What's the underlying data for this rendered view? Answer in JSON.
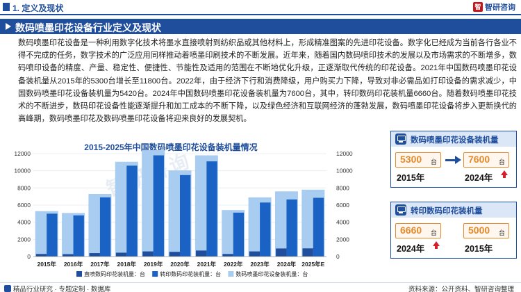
{
  "header": {
    "section_title": "1. 定义及现状",
    "brand": "智研咨询"
  },
  "title": "数码喷墨印花设备行业定义及现状",
  "paragraph": "数码喷墨印花设备是一种利用数字化技术将墨水直接喷射到纺织品或其他材料上，形成精准图案的先进印花设备。数字化已经成为当前各行各业不得不完成的任务，数字技术的广泛应用同样推动着喷墨印刷技术的不断发展。近年来，随着国内数码喷印技术的发展以及市场需求的不断增多，数码喷印设备的精度、产量、稳定性、便捷性、节能性及适用的范围在不断地优化升级，正逐渐取代传统的印花设备。2021年中国数码喷墨印花设备装机量从2015年的5300台增长至11800台。2022年，由于经济下行和消费降级，用户购买力下降，导致对非必需品如打印设备的需求减少，中国数码喷墨印花设备装机量为5420台。2024年中国数码喷墨印花设备装机量为7600台，其中，转印数码印花装机量6660台。随着数码喷墨印花技术的不断进步，数码印花设备性能逐渐提升和加工成本的不断下降，以及绿色经济和互联网经济的蓬勃发展，数码喷墨印花设备将步入更新换代的高峰期，数码喷墨印花及数码喷墨印花设备将迎来良好的发展契机。",
  "watermark": "智研咨询",
  "chart_data": {
    "type": "bar",
    "title": "2015-2025年中国数码喷墨印花设备装机量情况",
    "categories": [
      "2015年",
      "2016年",
      "2017年",
      "2018年",
      "2019年",
      "2020年",
      "2021年",
      "2022年",
      "2023年",
      "2024年",
      "2025年E"
    ],
    "ylim": [
      0,
      12000
    ],
    "yticks": [
      0,
      2000,
      4000,
      6000,
      8000,
      10000,
      12000
    ],
    "series": [
      {
        "name": "直喷数码印花装机量：台",
        "color": "#1f4e9c",
        "values": [
          300,
          280,
          400,
          450,
          600,
          550,
          700,
          300,
          600,
          940,
          950
        ]
      },
      {
        "name": "转印数码印花装机量：台",
        "color": "#1a63c5",
        "values": [
          5000,
          4800,
          6900,
          10600,
          11800,
          9500,
          11100,
          5120,
          6300,
          6660,
          6850
        ]
      },
      {
        "name": "数码喷墨印花设备装机量：台",
        "color": "#a9cdf0",
        "values": [
          5300,
          5080,
          7300,
          11050,
          12400,
          10050,
          11800,
          5420,
          6900,
          7600,
          7800
        ]
      }
    ]
  },
  "card_total": {
    "title": "数码喷墨印花设备装机量",
    "from_value": "5300",
    "from_unit": "台",
    "from_year": "2015年",
    "to_value": "7600",
    "to_unit": "台",
    "to_year": "2024年"
  },
  "card_transfer": {
    "title": "转印数码印花装机量",
    "left_value": "6660",
    "left_unit": "台",
    "left_year": "2024年",
    "right_value": "5000",
    "right_unit": "台",
    "right_year": "2015年"
  },
  "footer": {
    "left": "精品行业研究 · 专题定制 · 数据库",
    "right": "资料来源：公开资料、智研咨询整理"
  },
  "colors": {
    "primary": "#1f4e9c",
    "accent_orange": "#e58a2b",
    "up_red": "#d4202a"
  }
}
